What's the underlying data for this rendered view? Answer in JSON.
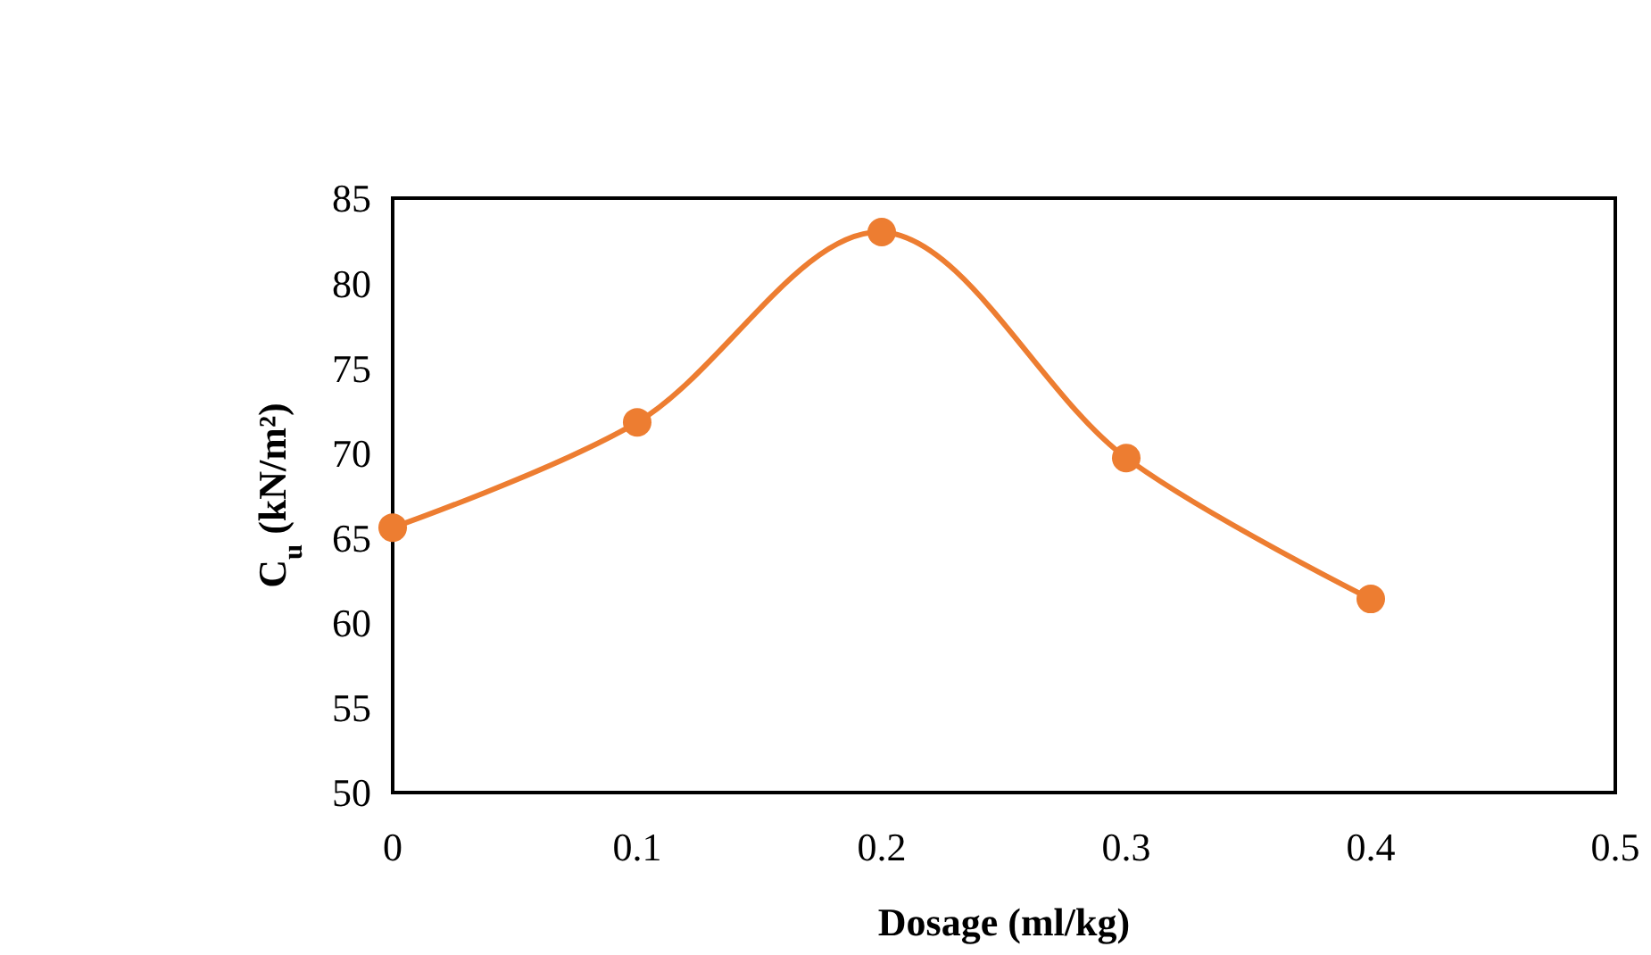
{
  "chart_data": {
    "type": "line",
    "xlabel": "Dosage (ml/kg)",
    "ylabel": "C$_{u}$ (kN/m²)",
    "x": [
      0,
      0.1,
      0.2,
      0.3,
      0.4
    ],
    "series": [
      {
        "color": "#ed7d31",
        "values": [
          65.6,
          71.8,
          83.0,
          69.7,
          61.4
        ]
      }
    ],
    "xlim": [
      0,
      0.5
    ],
    "xticks": [
      0,
      0.1,
      0.2,
      0.3,
      0.4,
      0.5
    ],
    "ylim": [
      50,
      85
    ],
    "yticks": [
      50,
      55,
      60,
      65,
      70,
      75,
      80,
      85
    ],
    "marker": "circle",
    "line_style": "solid"
  }
}
